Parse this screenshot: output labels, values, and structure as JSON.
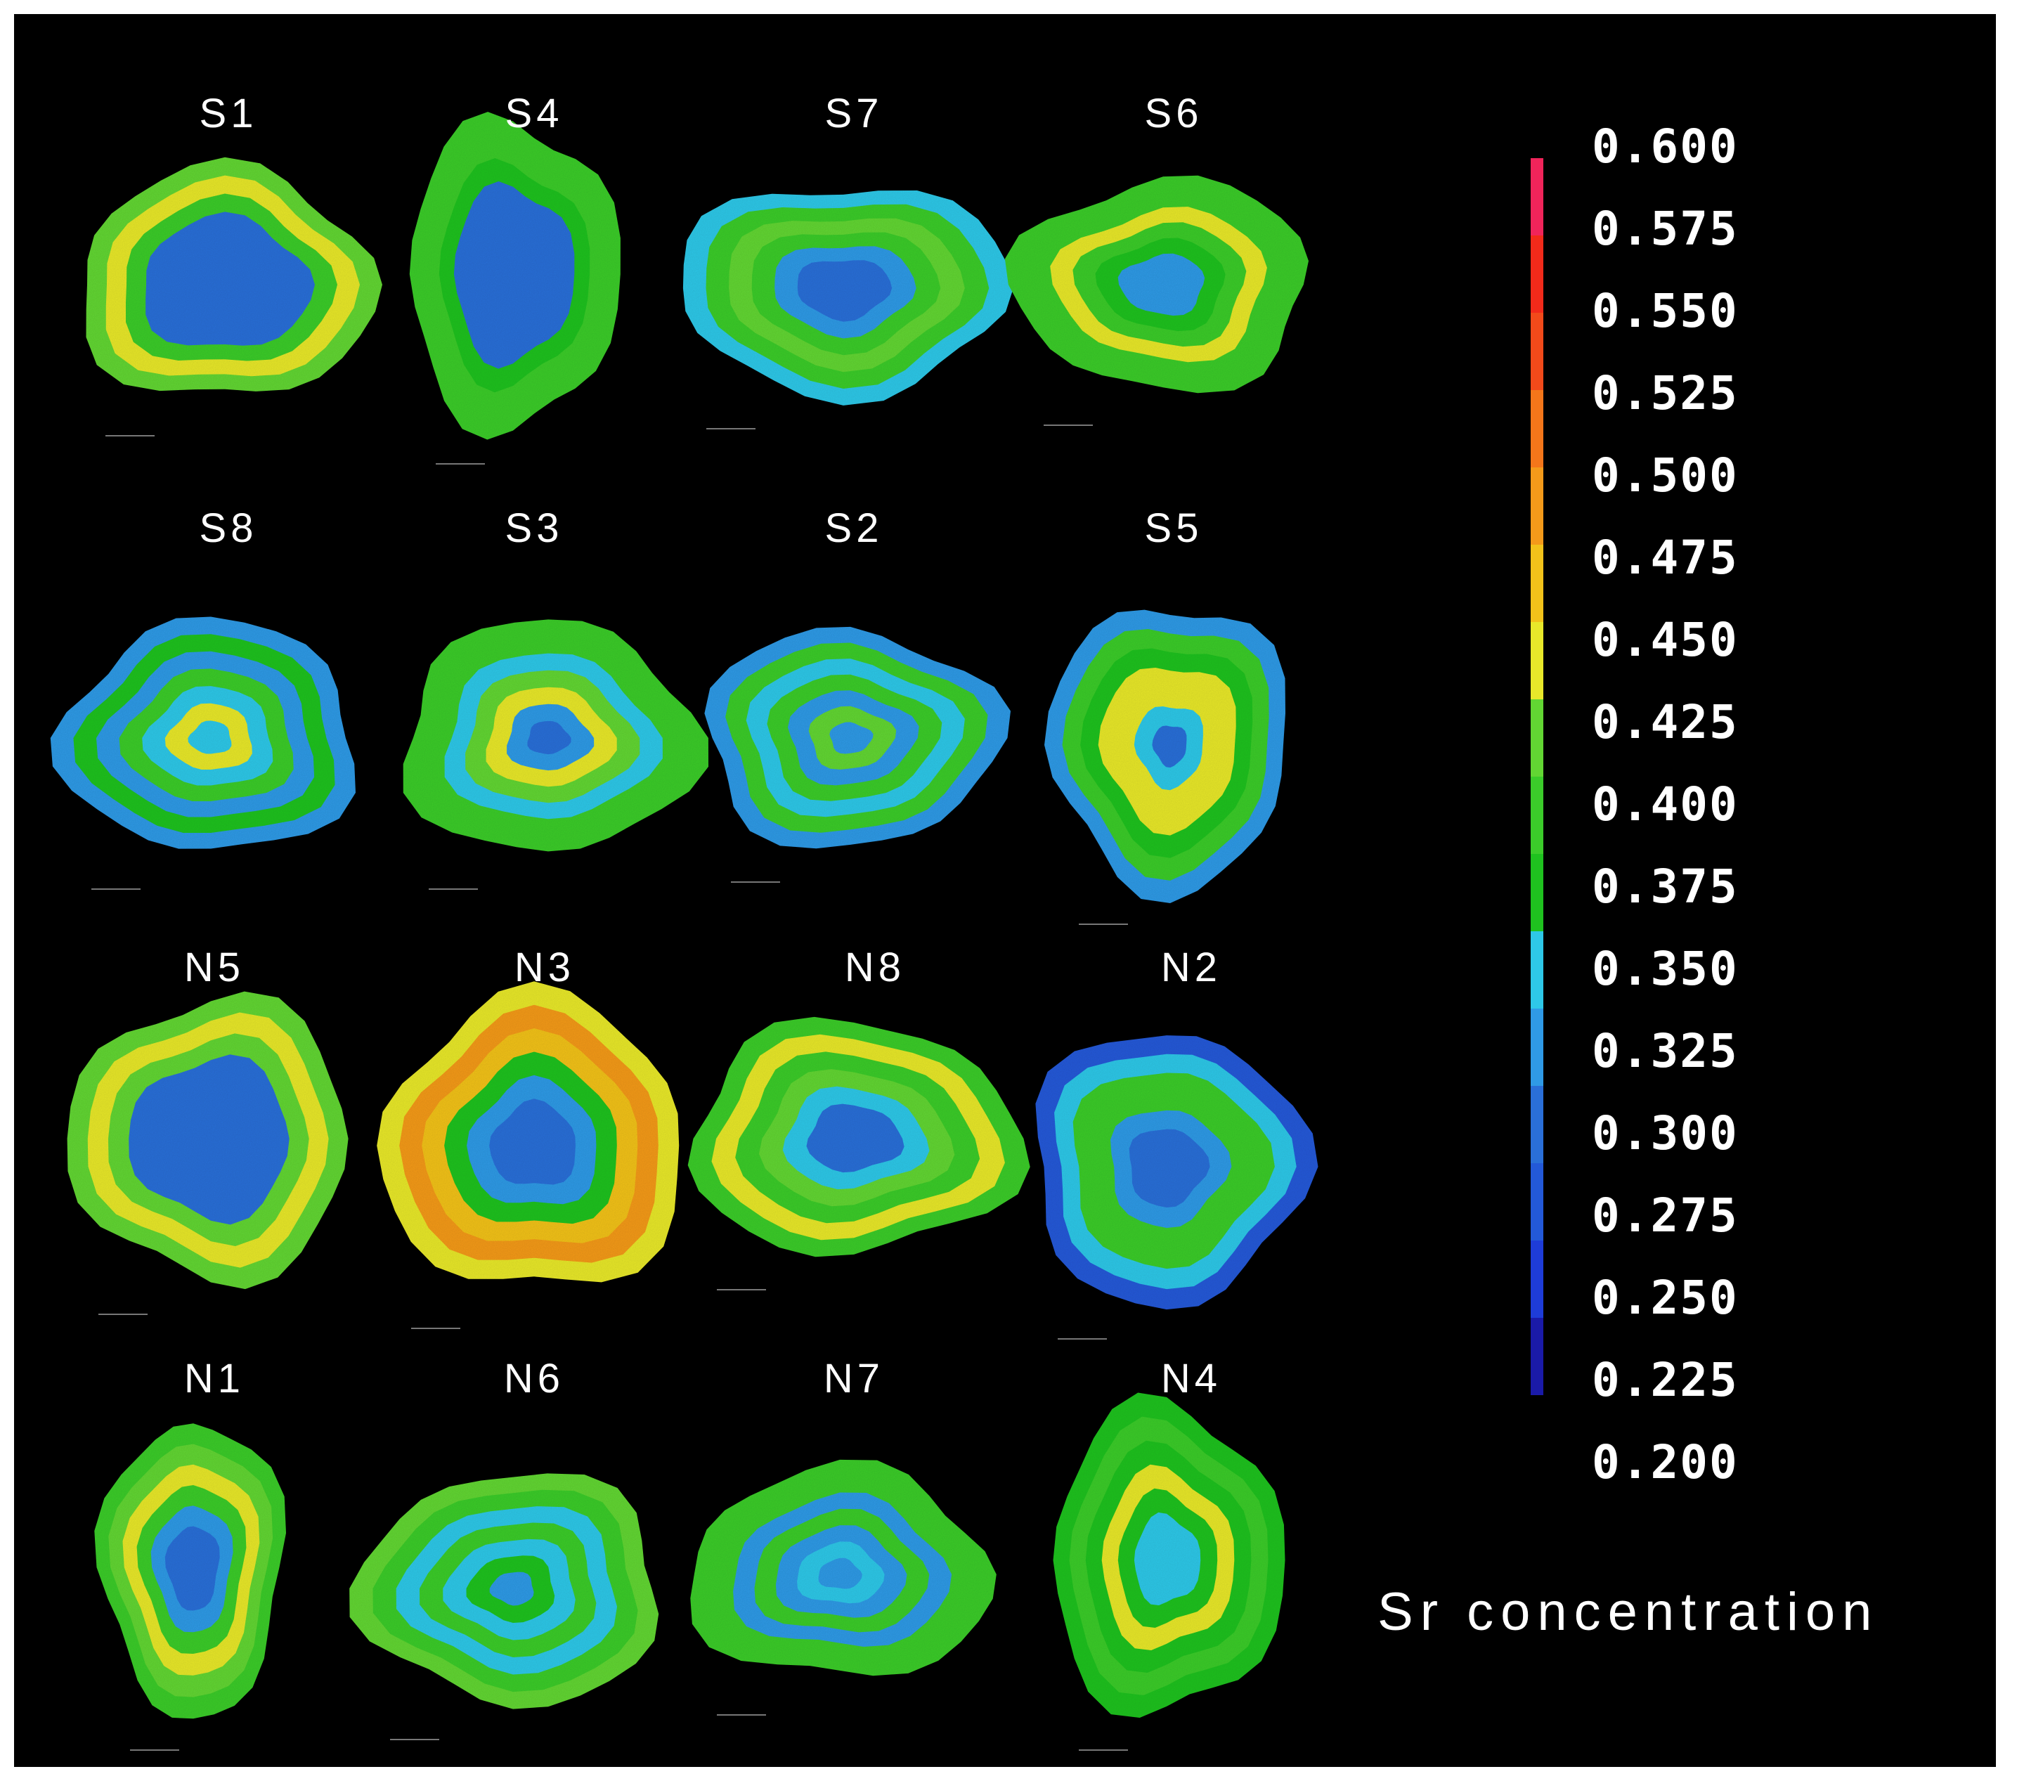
{
  "samples": [
    {
      "label": "S1",
      "profile": [
        0.3,
        0.3,
        0.3,
        0.3,
        0.4,
        0.44,
        0.42
      ]
    },
    {
      "label": "S4",
      "profile": [
        0.29,
        0.29,
        0.29,
        0.3,
        0.36,
        0.39,
        0.4
      ]
    },
    {
      "label": "S7",
      "profile": [
        0.3,
        0.3,
        0.31,
        0.39,
        0.42,
        0.38,
        0.33
      ]
    },
    {
      "label": "S6",
      "profile": [
        0.31,
        0.31,
        0.36,
        0.4,
        0.43,
        0.39,
        0.4
      ]
    },
    {
      "label": "S8",
      "profile": [
        0.33,
        0.43,
        0.34,
        0.39,
        0.32,
        0.37,
        0.32
      ]
    },
    {
      "label": "S3",
      "profile": [
        0.3,
        0.31,
        0.44,
        0.41,
        0.35,
        0.39,
        0.38
      ]
    },
    {
      "label": "S2",
      "profile": [
        0.31,
        0.41,
        0.32,
        0.39,
        0.33,
        0.4,
        0.31
      ]
    },
    {
      "label": "S5",
      "profile": [
        0.3,
        0.33,
        0.43,
        0.44,
        0.36,
        0.39,
        0.31
      ]
    },
    {
      "label": "N5",
      "profile": [
        0.29,
        0.29,
        0.29,
        0.3,
        0.42,
        0.44,
        0.41
      ]
    },
    {
      "label": "N3",
      "profile": [
        0.3,
        0.3,
        0.31,
        0.37,
        0.47,
        0.5,
        0.45
      ]
    },
    {
      "label": "N8",
      "profile": [
        0.29,
        0.3,
        0.34,
        0.42,
        0.4,
        0.44,
        0.4
      ]
    },
    {
      "label": "N2",
      "profile": [
        0.29,
        0.29,
        0.31,
        0.38,
        0.39,
        0.34,
        0.27
      ]
    },
    {
      "label": "N1",
      "profile": [
        0.3,
        0.3,
        0.31,
        0.4,
        0.43,
        0.42,
        0.4
      ]
    },
    {
      "label": "N6",
      "profile": [
        0.32,
        0.37,
        0.33,
        0.39,
        0.34,
        0.4,
        0.42
      ]
    },
    {
      "label": "N7",
      "profile": [
        0.32,
        0.35,
        0.32,
        0.4,
        0.31,
        0.39,
        0.4
      ]
    },
    {
      "label": "N4",
      "profile": [
        0.33,
        0.34,
        0.37,
        0.44,
        0.36,
        0.39,
        0.37
      ]
    }
  ],
  "colorbar": {
    "title": "Sr concentration",
    "ticks": [
      "0.600",
      "0.575",
      "0.550",
      "0.525",
      "0.500",
      "0.475",
      "0.450",
      "0.425",
      "0.400",
      "0.375",
      "0.350",
      "0.325",
      "0.300",
      "0.275",
      "0.250",
      "0.225",
      "0.200"
    ],
    "min": 0.2,
    "max": 0.6,
    "palette": {
      "0.225": "#1a1aa8",
      "0.250": "#1e3cd8",
      "0.275": "#2359d8",
      "0.300": "#2a6fd8",
      "0.325": "#2f9ae6",
      "0.350": "#2ec8e8",
      "0.375": "#1fc21f",
      "0.400": "#3bcc2a",
      "0.425": "#62d633",
      "0.450": "#e8e82a",
      "0.475": "#f2c21a",
      "0.500": "#f49a1a",
      "0.525": "#f4761a",
      "0.550": "#f24a1a",
      "0.575": "#f22a1a",
      "0.600": "#f0245a"
    }
  }
}
